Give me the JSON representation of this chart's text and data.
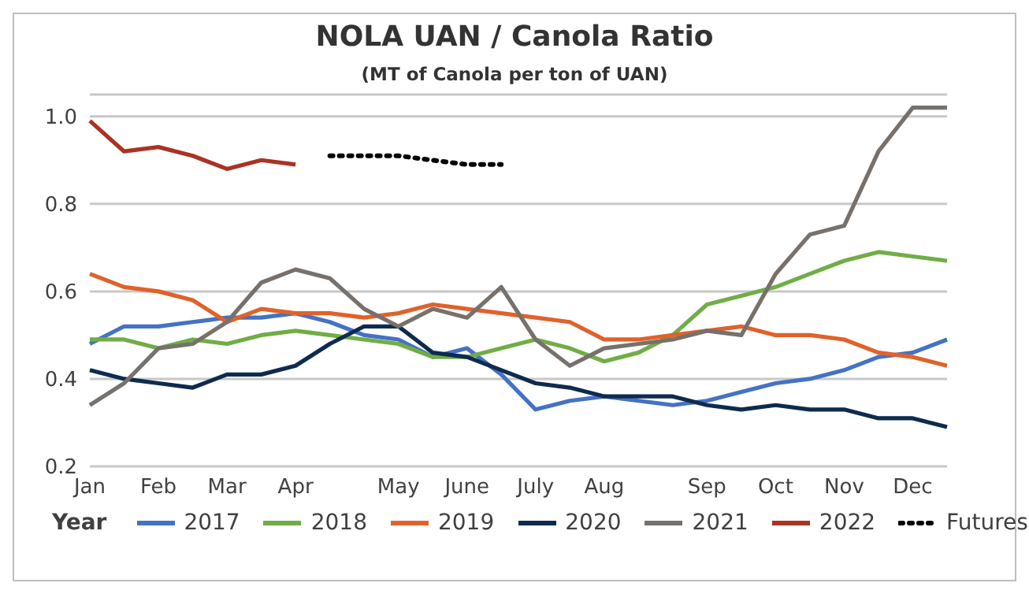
{
  "chart_data": {
    "type": "line",
    "title": "NOLA UAN / Canola Ratio",
    "subtitle": "(MT of Canola per ton of UAN)",
    "legend_title": "Year",
    "categories": [
      "Jan",
      null,
      "Feb",
      null,
      "Mar",
      null,
      "Apr",
      null,
      null,
      "May",
      null,
      "June",
      null,
      "July",
      null,
      "Aug",
      null,
      null,
      "Sep",
      null,
      "Oct",
      null,
      "Nov",
      null,
      "Dec",
      null
    ],
    "ylim": [
      0.2,
      1.05
    ],
    "yticks": [
      {
        "value": 0.2,
        "label": "0.2"
      },
      {
        "value": 0.4,
        "label": "0.4"
      },
      {
        "value": 0.6,
        "label": "0.6"
      },
      {
        "value": 0.8,
        "label": "0.8"
      },
      {
        "value": 1.0,
        "label": "1.0"
      }
    ],
    "grid": "y",
    "legend": "bottom",
    "marker": "none",
    "series": [
      {
        "name": "2017",
        "color": "#4472c4",
        "values": [
          0.48,
          0.52,
          0.52,
          0.53,
          0.54,
          0.54,
          0.55,
          0.53,
          0.5,
          0.49,
          0.45,
          0.47,
          0.41,
          0.33,
          0.35,
          0.36,
          0.35,
          0.34,
          0.35,
          0.37,
          0.39,
          0.4,
          0.42,
          0.45,
          0.46,
          0.49
        ]
      },
      {
        "name": "2018",
        "color": "#70ad47",
        "values": [
          0.49,
          0.49,
          0.47,
          0.49,
          0.48,
          0.5,
          0.51,
          0.5,
          0.49,
          0.48,
          0.45,
          0.45,
          0.47,
          0.49,
          0.47,
          0.44,
          0.46,
          0.5,
          0.57,
          0.59,
          0.61,
          0.64,
          0.67,
          0.69,
          0.68,
          0.67
        ]
      },
      {
        "name": "2019",
        "color": "#e0622a",
        "values": [
          0.64,
          0.61,
          0.6,
          0.58,
          0.53,
          0.56,
          0.55,
          0.55,
          0.54,
          0.55,
          0.57,
          0.56,
          0.55,
          0.54,
          0.53,
          0.49,
          0.49,
          0.5,
          0.51,
          0.52,
          0.5,
          0.5,
          0.49,
          0.46,
          0.45,
          0.43
        ]
      },
      {
        "name": "2020",
        "color": "#0e2b4f",
        "values": [
          0.42,
          0.4,
          0.39,
          0.38,
          0.41,
          0.41,
          0.43,
          0.48,
          0.52,
          0.52,
          0.46,
          0.45,
          0.42,
          0.39,
          0.38,
          0.36,
          0.36,
          0.36,
          0.34,
          0.33,
          0.34,
          0.33,
          0.33,
          0.31,
          0.31,
          0.29
        ]
      },
      {
        "name": "2021",
        "color": "#77706b",
        "values": [
          0.34,
          0.39,
          0.47,
          0.48,
          0.53,
          0.62,
          0.65,
          0.63,
          0.56,
          0.52,
          0.56,
          0.54,
          0.61,
          0.49,
          0.43,
          0.47,
          0.48,
          0.49,
          0.51,
          0.5,
          0.64,
          0.73,
          0.75,
          0.92,
          1.02,
          1.02
        ]
      },
      {
        "name": "2022",
        "color": "#a93324",
        "values": [
          0.99,
          0.92,
          0.93,
          0.91,
          0.88,
          0.9,
          0.89,
          null,
          null,
          null,
          null,
          null,
          null,
          null,
          null,
          null,
          null,
          null,
          null,
          null,
          null,
          null,
          null,
          null,
          null,
          null
        ]
      },
      {
        "name": "Futures",
        "color": "#000000",
        "line_style": "dotted",
        "values": [
          null,
          null,
          null,
          null,
          null,
          null,
          null,
          0.91,
          0.91,
          0.91,
          0.9,
          0.89,
          0.89,
          null,
          null,
          null,
          null,
          null,
          null,
          null,
          null,
          null,
          null,
          null,
          null,
          null
        ]
      }
    ]
  }
}
